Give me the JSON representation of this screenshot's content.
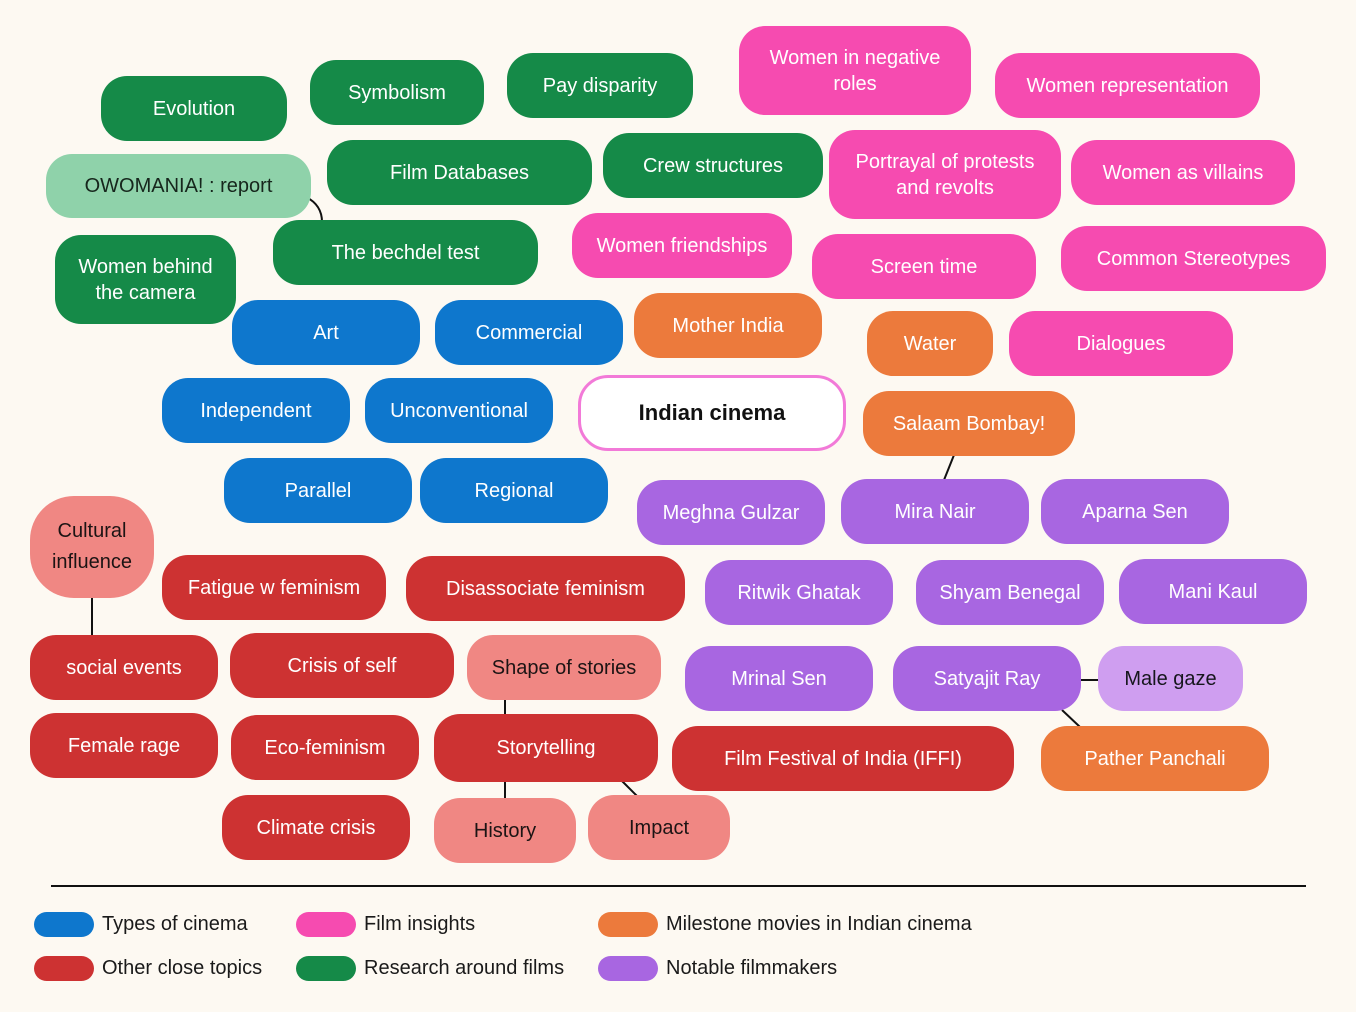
{
  "colors": {
    "green": "#158a48",
    "mint": "#8fd2aa",
    "pink": "#f64bb0",
    "blue": "#0e77cd",
    "orange": "#ec7a3c",
    "purple": "#a866e1",
    "lilac": "#cf9ef0",
    "red": "#cd3232",
    "salmon": "#f08783",
    "center_border": "#f27ad8"
  },
  "nodes": {
    "evolution": "Evolution",
    "symbolism": "Symbolism",
    "pay_disparity": "Pay disparity",
    "women_negative_roles": "Women in negative roles",
    "women_representation": "Women representation",
    "owomania_report": "OWOMANIA! : report",
    "film_databases": "Film Databases",
    "crew_structures": "Crew structures",
    "portrayal_protests": "Portrayal of protests and revolts",
    "women_villains": "Women as villains",
    "women_behind_camera": "Women behind the camera",
    "bechdel_test": "The bechdel test",
    "women_friendships": "Women friendships",
    "screen_time": "Screen time",
    "common_stereotypes": "Common Stereotypes",
    "art": "Art",
    "commercial": "Commercial",
    "mother_india": "Mother India",
    "water": "Water",
    "dialogues": "Dialogues",
    "independent": "Independent",
    "unconventional": "Unconventional",
    "indian_cinema": "Indian cinema",
    "salaam_bombay": "Salaam Bombay!",
    "parallel": "Parallel",
    "regional": "Regional",
    "meghna_gulzar": "Meghna Gulzar",
    "mira_nair": "Mira Nair",
    "aparna_sen": "Aparna Sen",
    "cultural_influence": "Cultural influence",
    "fatigue_feminism": "Fatigue w feminism",
    "disassociate_feminism": "Disassociate feminism",
    "ritwik_ghatak": "Ritwik Ghatak",
    "shyam_benegal": "Shyam Benegal",
    "mani_kaul": "Mani Kaul",
    "social_events": "social events",
    "crisis_of_self": "Crisis of self",
    "shape_of_stories": "Shape of stories",
    "mrinal_sen": "Mrinal Sen",
    "satyajit_ray": "Satyajit Ray",
    "male_gaze": "Male gaze",
    "female_rage": "Female rage",
    "eco_feminism": "Eco-feminism",
    "storytelling": "Storytelling",
    "iffi": "Film Festival of India (IFFI)",
    "pather_panchali": "Pather Panchali",
    "climate_crisis": "Climate crisis",
    "history": "History",
    "impact": "Impact"
  },
  "legend": [
    {
      "label": "Types of cinema",
      "color": "#0e77cd"
    },
    {
      "label": "Film insights",
      "color": "#f64bb0"
    },
    {
      "label": "Milestone movies in Indian cinema",
      "color": "#ec7a3c"
    },
    {
      "label": "Other close topics",
      "color": "#cd3232"
    },
    {
      "label": "Research around films",
      "color": "#158a48"
    },
    {
      "label": "Notable filmmakers",
      "color": "#a866e1"
    }
  ]
}
